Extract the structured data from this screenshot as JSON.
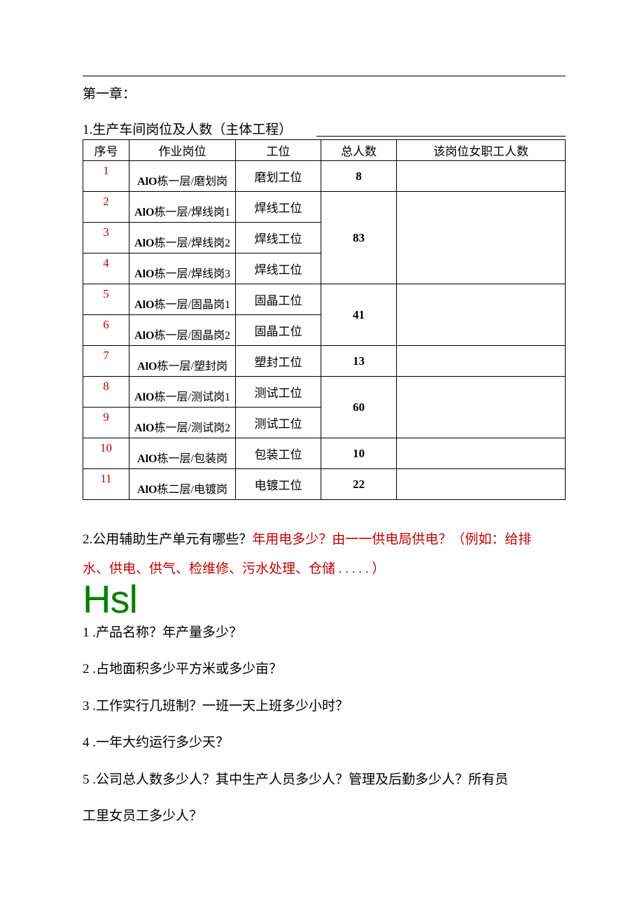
{
  "chapter": "第一章：",
  "section1_title": "1.生产车间岗位及人数（主体工程）",
  "table": {
    "headers": [
      "序号",
      "作业岗位",
      "工位",
      "总人数",
      "该岗位女职工人数"
    ],
    "rows": [
      {
        "idx": "1",
        "job_b": "AlO",
        "job_rest": "栋一层/磨划岗",
        "pos": "磨划工位",
        "total": "8",
        "span": 1
      },
      {
        "idx": "2",
        "job_b": "AlO",
        "job_rest": "栋一层/焊线岗1",
        "pos": "焊线工位",
        "total": "83",
        "span": 3
      },
      {
        "idx": "3",
        "job_b": "AlO",
        "job_rest": "栋一层/焊线岗2",
        "pos": "焊线工位"
      },
      {
        "idx": "4",
        "job_b": "AlO",
        "job_rest": "栋一层/焊线岗3",
        "pos": "焊线工位"
      },
      {
        "idx": "5",
        "job_b": "AlO",
        "job_rest": "栋一层/固晶岗1",
        "pos": "固晶工位",
        "total": "41",
        "span": 2
      },
      {
        "idx": "6",
        "job_b": "AlO",
        "job_rest": "栋一层/固晶岗2",
        "pos": "固晶工位"
      },
      {
        "idx": "7",
        "job_b": "AlO",
        "job_rest": "栋一层/塑封岗",
        "pos": "塑封工位",
        "total": "13",
        "span": 1
      },
      {
        "idx": "8",
        "job_b": "AlO",
        "job_rest": "栋一层/测试岗1",
        "pos": "测试工位",
        "total": "60",
        "span": 2
      },
      {
        "idx": "9",
        "job_b": "AlO",
        "job_rest": "栋一层/测试岗2",
        "pos": "测试工位"
      },
      {
        "idx": "10",
        "job_b": "AlO",
        "job_rest": "栋一层/包装岗",
        "pos": "包装工位",
        "total": "10",
        "span": 1
      },
      {
        "idx": "11",
        "job_b": "AlO",
        "job_rest": "栋二层/电镀岗",
        "pos": "电镀工位",
        "total": "22",
        "span": 1
      }
    ]
  },
  "q2_black": "2.公用辅助生产单元有哪些？",
  "q2_red1": "年用电多少？由一一供电局供电？（例如：给排",
  "q2_red2": "水、供电、供气、检维修、污水处理、仓储 . . . . . ）",
  "hsl": "Hsl",
  "list": [
    "1  .产品名称？年产量多少？",
    "2  .占地面积多少平方米或多少亩？",
    "3  .工作实行几班制？一班一天上班多少小时？",
    "4  .一年大约运行多少天？",
    "5  .公司总人数多少人？其中生产人员多少人？管理及后勤多少人？所有员",
    "工里女员工多少人？"
  ]
}
